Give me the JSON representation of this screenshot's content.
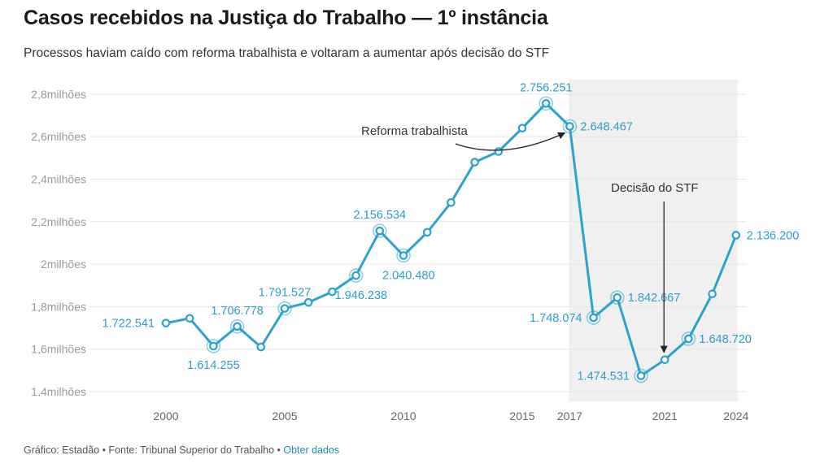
{
  "header": {
    "title": "Casos recebidos na Justiça do Trabalho — 1º instância",
    "subtitle": "Processos haviam caído com reforma trabalhista e voltaram a aumentar após decisão do STF"
  },
  "footer": {
    "credit": "Gráfico: Estadão • Fonte: Tribunal Superior do Trabalho • ",
    "link_label": "Obter dados"
  },
  "colors": {
    "line": "#2ba3cc",
    "label": "#2a9fc8",
    "highlight_band": "#f0f0f0",
    "grid": "#e6e6e6",
    "annotation": "#333333"
  },
  "chart_data": {
    "type": "line",
    "title": "Casos recebidos na Justiça do Trabalho — 1º instância",
    "xlabel": "",
    "ylabel": "",
    "ylim": [
      1.4,
      2.8
    ],
    "xlim": [
      1997,
      2024
    ],
    "grid": true,
    "y_ticks": [
      {
        "value": 1.4,
        "label": "1,4milhões"
      },
      {
        "value": 1.6,
        "label": "1,6milhões"
      },
      {
        "value": 1.8,
        "label": "1,8milhões"
      },
      {
        "value": 2.0,
        "label": "2milhões"
      },
      {
        "value": 2.2,
        "label": "2,2milhões"
      },
      {
        "value": 2.4,
        "label": "2,4milhões"
      },
      {
        "value": 2.6,
        "label": "2,6milhões"
      },
      {
        "value": 2.8,
        "label": "2,8milhões"
      }
    ],
    "x_ticks": [
      {
        "value": 2000,
        "label": "2000"
      },
      {
        "value": 2005,
        "label": "2005"
      },
      {
        "value": 2010,
        "label": "2010"
      },
      {
        "value": 2015,
        "label": "2015"
      },
      {
        "value": 2017,
        "label": "2017"
      },
      {
        "value": 2021,
        "label": "2021"
      },
      {
        "value": 2024,
        "label": "2024"
      }
    ],
    "highlight_range": [
      2017,
      2024
    ],
    "series": [
      {
        "points": [
          {
            "x": 2000,
            "y": 1.722541,
            "label": "1.722.541",
            "label_pos": "left"
          },
          {
            "x": 2001,
            "y": 1.745
          },
          {
            "x": 2002,
            "y": 1.614255,
            "label": "1.614.255",
            "label_pos": "below",
            "ring": true
          },
          {
            "x": 2003,
            "y": 1.706778,
            "label": "1.706.778",
            "label_pos": "above",
            "ring": true
          },
          {
            "x": 2004,
            "y": 1.61
          },
          {
            "x": 2005,
            "y": 1.791527,
            "label": "1.791.527",
            "label_pos": "above",
            "ring": true
          },
          {
            "x": 2006,
            "y": 1.82
          },
          {
            "x": 2007,
            "y": 1.87
          },
          {
            "x": 2008,
            "y": 1.946238,
            "label": "1.946.238",
            "label_pos": "below-right",
            "ring": true
          },
          {
            "x": 2009,
            "y": 2.156534,
            "label": "2.156.534",
            "label_pos": "above",
            "ring": true
          },
          {
            "x": 2010,
            "y": 2.04048,
            "label": "2.040.480",
            "label_pos": "below-right",
            "ring": true
          },
          {
            "x": 2011,
            "y": 2.15
          },
          {
            "x": 2012,
            "y": 2.29
          },
          {
            "x": 2013,
            "y": 2.48
          },
          {
            "x": 2014,
            "y": 2.53
          },
          {
            "x": 2015,
            "y": 2.64
          },
          {
            "x": 2016,
            "y": 2.756251,
            "label": "2.756.251",
            "label_pos": "above",
            "ring": true
          },
          {
            "x": 2017,
            "y": 2.648467,
            "label": "2.648.467",
            "label_pos": "right",
            "ring": true
          },
          {
            "x": 2018,
            "y": 1.748074,
            "label": "1.748.074",
            "label_pos": "left",
            "ring": true
          },
          {
            "x": 2019,
            "y": 1.842667,
            "label": "1.842.667",
            "label_pos": "right",
            "ring": true
          },
          {
            "x": 2020,
            "y": 1.474531,
            "label": "1.474.531",
            "label_pos": "left",
            "ring": true
          },
          {
            "x": 2021,
            "y": 1.55
          },
          {
            "x": 2022,
            "y": 1.64872,
            "label": "1.648.720",
            "label_pos": "right",
            "ring": true
          },
          {
            "x": 2023,
            "y": 1.86
          },
          {
            "x": 2024,
            "y": 2.1362,
            "label": "2.136.200",
            "label_pos": "right"
          }
        ]
      }
    ],
    "annotations": [
      {
        "text": "Reforma trabalhista",
        "target_x": 2017,
        "target_y": 2.648467
      },
      {
        "text": "Decisão do STF",
        "target_x": 2021,
        "target_y": 1.55
      }
    ]
  }
}
